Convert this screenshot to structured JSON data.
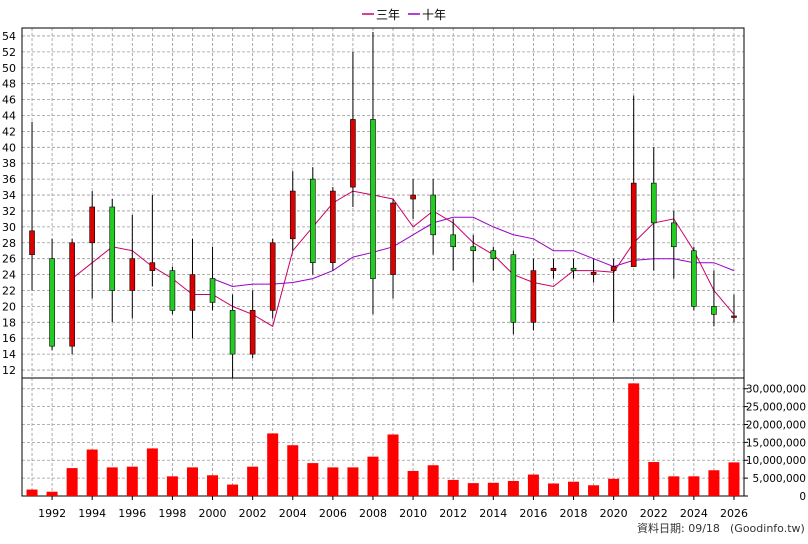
{
  "legend": {
    "items": [
      {
        "label": "三年",
        "color": "#cc0066"
      },
      {
        "label": "十年",
        "color": "#9900cc"
      }
    ]
  },
  "footer": {
    "date_label": "資料日期: 09/18",
    "source": "(Goodinfo.tw)"
  },
  "colors": {
    "up": "#dd0000",
    "down": "#22cc22",
    "volume": "#ff0000",
    "grid": "#999999",
    "ma3": "#cc0066",
    "ma10": "#9900cc"
  },
  "chart_data": [
    {
      "type": "candlestick",
      "title": "",
      "x_ticks": [
        "1992",
        "1994",
        "1996",
        "1998",
        "2000",
        "2002",
        "2004",
        "2006",
        "2008",
        "2010",
        "2012",
        "2014",
        "2016",
        "2018",
        "2020",
        "2022",
        "2024",
        "2026"
      ],
      "y_ticks": [
        "12",
        "14",
        "16",
        "18",
        "20",
        "22",
        "24",
        "26",
        "28",
        "30",
        "32",
        "34",
        "36",
        "38",
        "40",
        "42",
        "44",
        "46",
        "48",
        "50",
        "52",
        "54"
      ],
      "ylim": [
        11,
        55
      ],
      "xlim": [
        1990.5,
        2026.5
      ],
      "grid": true,
      "candles": [
        {
          "year": 1991,
          "open": 26.5,
          "high": 43.2,
          "low": 22.0,
          "close": 29.5
        },
        {
          "year": 1992,
          "open": 26.0,
          "high": 28.5,
          "low": 14.5,
          "close": 15.0
        },
        {
          "year": 1993,
          "open": 15.0,
          "high": 28.5,
          "low": 14.0,
          "close": 28.0
        },
        {
          "year": 1994,
          "open": 28.0,
          "high": 34.5,
          "low": 21.0,
          "close": 32.5
        },
        {
          "year": 1995,
          "open": 32.5,
          "high": 33.5,
          "low": 18.0,
          "close": 22.0
        },
        {
          "year": 1996,
          "open": 22.0,
          "high": 31.5,
          "low": 18.5,
          "close": 26.0
        },
        {
          "year": 1997,
          "open": 24.5,
          "high": 34.0,
          "low": 22.5,
          "close": 25.5
        },
        {
          "year": 1998,
          "open": 24.5,
          "high": 25.0,
          "low": 19.0,
          "close": 19.5
        },
        {
          "year": 1999,
          "open": 19.5,
          "high": 28.5,
          "low": 16.0,
          "close": 24.0
        },
        {
          "year": 2000,
          "open": 23.5,
          "high": 27.5,
          "low": 19.5,
          "close": 20.5
        },
        {
          "year": 2001,
          "open": 19.5,
          "high": 21.5,
          "low": 11.0,
          "close": 14.0
        },
        {
          "year": 2002,
          "open": 14.0,
          "high": 22.0,
          "low": 13.5,
          "close": 19.5
        },
        {
          "year": 2003,
          "open": 19.5,
          "high": 28.5,
          "low": 18.5,
          "close": 28.0
        },
        {
          "year": 2004,
          "open": 28.5,
          "high": 37.0,
          "low": 27.0,
          "close": 34.5
        },
        {
          "year": 2005,
          "open": 36.0,
          "high": 37.5,
          "low": 24.0,
          "close": 25.5
        },
        {
          "year": 2006,
          "open": 25.5,
          "high": 35.0,
          "low": 24.5,
          "close": 34.5
        },
        {
          "year": 2007,
          "open": 35.0,
          "high": 52.0,
          "low": 32.5,
          "close": 43.5
        },
        {
          "year": 2008,
          "open": 43.5,
          "high": 54.5,
          "low": 19.0,
          "close": 23.5
        },
        {
          "year": 2009,
          "open": 24.0,
          "high": 33.5,
          "low": 21.0,
          "close": 33.0
        },
        {
          "year": 2010,
          "open": 33.5,
          "high": 36.0,
          "low": 31.0,
          "close": 34.0
        },
        {
          "year": 2011,
          "open": 34.0,
          "high": 36.0,
          "low": 26.5,
          "close": 29.0
        },
        {
          "year": 2012,
          "open": 29.0,
          "high": 31.0,
          "low": 24.5,
          "close": 27.5
        },
        {
          "year": 2013,
          "open": 27.5,
          "high": 29.0,
          "low": 23.0,
          "close": 27.0
        },
        {
          "year": 2014,
          "open": 27.0,
          "high": 27.5,
          "low": 24.5,
          "close": 26.0
        },
        {
          "year": 2015,
          "open": 26.5,
          "high": 27.0,
          "low": 16.5,
          "close": 18.0
        },
        {
          "year": 2016,
          "open": 18.0,
          "high": 26.0,
          "low": 17.0,
          "close": 24.5
        },
        {
          "year": 2017,
          "open": 24.5,
          "high": 26.0,
          "low": 23.5,
          "close": 24.8
        },
        {
          "year": 2018,
          "open": 24.8,
          "high": 26.0,
          "low": 23.5,
          "close": 24.5
        },
        {
          "year": 2019,
          "open": 24.0,
          "high": 26.0,
          "low": 23.0,
          "close": 24.3
        },
        {
          "year": 2020,
          "open": 24.5,
          "high": 26.0,
          "low": 18.0,
          "close": 25.0
        },
        {
          "year": 2021,
          "open": 25.0,
          "high": 46.5,
          "low": 25.0,
          "close": 35.5
        },
        {
          "year": 2022,
          "open": 35.5,
          "high": 40.0,
          "low": 24.5,
          "close": 30.5
        },
        {
          "year": 2023,
          "open": 30.5,
          "high": 32.0,
          "low": 23.5,
          "close": 27.5
        },
        {
          "year": 2024,
          "open": 27.0,
          "high": 27.5,
          "low": 19.5,
          "close": 20.0
        },
        {
          "year": 2025,
          "open": 20.0,
          "high": 24.5,
          "low": 17.5,
          "close": 19.0
        },
        {
          "year": 2026,
          "open": 18.8,
          "high": 21.5,
          "low": 18.0,
          "close": 18.8
        }
      ],
      "series": [
        {
          "name": "三年",
          "x": [
            1993,
            1994,
            1995,
            1996,
            1997,
            1998,
            1999,
            2000,
            2001,
            2002,
            2003,
            2004,
            2005,
            2006,
            2007,
            2008,
            2009,
            2010,
            2011,
            2012,
            2013,
            2014,
            2015,
            2016,
            2017,
            2018,
            2019,
            2020,
            2021,
            2022,
            2023,
            2024,
            2025,
            2026
          ],
          "values": [
            23.5,
            25.5,
            27.5,
            27.0,
            25.0,
            23.5,
            21.5,
            21.5,
            20.0,
            19.0,
            17.5,
            27.0,
            30.0,
            33.0,
            34.5,
            34.0,
            33.5,
            30.0,
            32.0,
            30.5,
            28.0,
            26.5,
            24.0,
            23.0,
            22.5,
            24.5,
            24.5,
            24.3,
            28.0,
            30.5,
            31.0,
            27.0,
            22.0,
            19.0
          ]
        },
        {
          "name": "十年",
          "x": [
            2000,
            2001,
            2002,
            2003,
            2004,
            2005,
            2006,
            2007,
            2008,
            2009,
            2010,
            2011,
            2012,
            2013,
            2014,
            2015,
            2016,
            2017,
            2018,
            2019,
            2020,
            2021,
            2022,
            2023,
            2024,
            2025,
            2026
          ],
          "values": [
            23.5,
            22.5,
            22.8,
            22.8,
            23.0,
            23.5,
            24.5,
            26.2,
            26.8,
            27.5,
            29.0,
            30.5,
            31.2,
            31.2,
            30.0,
            29.0,
            28.5,
            27.0,
            27.0,
            26.0,
            25.0,
            25.8,
            26.0,
            26.0,
            25.5,
            25.5,
            24.5
          ]
        }
      ]
    },
    {
      "type": "bar",
      "title": "",
      "y_ticks": [
        "0",
        "5,000,000",
        "10,000,000",
        "15,000,000",
        "20,000,000",
        "25,000,000",
        "30,000,000"
      ],
      "ylim": [
        0,
        33000000
      ],
      "x": [
        1991,
        1992,
        1993,
        1994,
        1995,
        1996,
        1997,
        1998,
        1999,
        2000,
        2001,
        2002,
        2003,
        2004,
        2005,
        2006,
        2007,
        2008,
        2009,
        2010,
        2011,
        2012,
        2013,
        2014,
        2015,
        2016,
        2017,
        2018,
        2019,
        2020,
        2021,
        2022,
        2023,
        2024,
        2025,
        2026
      ],
      "values": [
        1800000,
        1200000,
        7800000,
        13000000,
        8000000,
        8200000,
        13300000,
        5500000,
        8000000,
        5800000,
        3200000,
        8200000,
        17500000,
        14200000,
        9200000,
        8000000,
        8000000,
        11000000,
        17200000,
        7000000,
        8600000,
        4500000,
        3600000,
        3700000,
        4200000,
        6000000,
        3500000,
        4000000,
        3000000,
        4800000,
        31500000,
        9500000,
        5500000,
        5500000,
        7200000,
        9400000
      ]
    }
  ]
}
